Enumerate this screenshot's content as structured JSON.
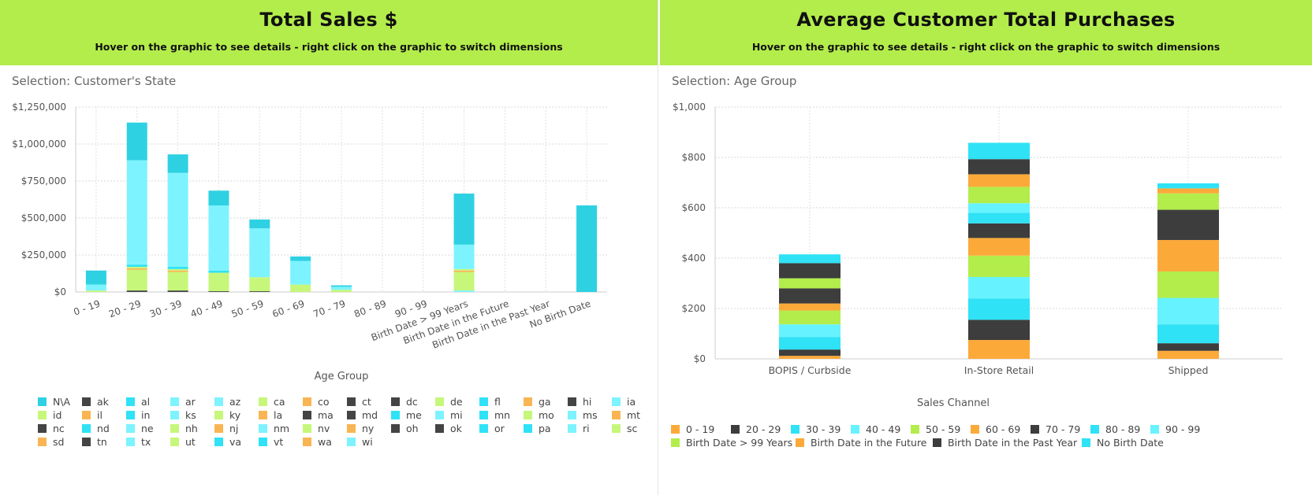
{
  "left_panel": {
    "title": "Total Sales $",
    "subtitle": "Hover on the graphic to see details - right click on the graphic to switch dimensions",
    "selection": "Selection: Customer's State"
  },
  "right_panel": {
    "title": "Average Customer Total Purchases",
    "subtitle": "Hover on the graphic to see details - right click on the graphic to switch dimensions",
    "selection": "Selection: Age Group"
  },
  "chart_data": [
    {
      "type": "bar",
      "stacked": true,
      "title": "Total Sales $",
      "xlabel": "Age Group",
      "ylabel": "",
      "ylim": [
        0,
        1250000
      ],
      "yticks": [
        0,
        250000,
        500000,
        750000,
        1000000,
        1250000
      ],
      "ytick_labels": [
        "$0",
        "$250,000",
        "$500,000",
        "$750,000",
        "$1,000,000",
        "$1,250,000"
      ],
      "grid": true,
      "legend_position": "bottom",
      "categories": [
        "0 - 19",
        "20 - 29",
        "30 - 39",
        "40 - 49",
        "50 - 59",
        "60 - 69",
        "70 - 79",
        "80 - 89",
        "90 - 99",
        "Birth Date > 99 Years",
        "Birth Date in the Future",
        "Birth Date in the Past Year",
        "No Birth Date"
      ],
      "legend": [
        {
          "name": "N\\A",
          "color": "#2ed1e2"
        },
        {
          "name": "ak",
          "color": "#444444"
        },
        {
          "name": "al",
          "color": "#2fe2f5"
        },
        {
          "name": "ar",
          "color": "#7df3ff"
        },
        {
          "name": "az",
          "color": "#7df3ff"
        },
        {
          "name": "ca",
          "color": "#c6f77a"
        },
        {
          "name": "co",
          "color": "#f9b553"
        },
        {
          "name": "ct",
          "color": "#444444"
        },
        {
          "name": "dc",
          "color": "#444444"
        },
        {
          "name": "de",
          "color": "#c6f77a"
        },
        {
          "name": "fl",
          "color": "#2fe2f5"
        },
        {
          "name": "ga",
          "color": "#f9b553"
        },
        {
          "name": "hi",
          "color": "#444444"
        },
        {
          "name": "ia",
          "color": "#7df3ff"
        },
        {
          "name": "id",
          "color": "#c6f77a"
        },
        {
          "name": "il",
          "color": "#f9b553"
        },
        {
          "name": "in",
          "color": "#2fe2f5"
        },
        {
          "name": "ks",
          "color": "#7df3ff"
        },
        {
          "name": "ky",
          "color": "#c6f77a"
        },
        {
          "name": "la",
          "color": "#f9b553"
        },
        {
          "name": "ma",
          "color": "#444444"
        },
        {
          "name": "md",
          "color": "#444444"
        },
        {
          "name": "me",
          "color": "#2fe2f5"
        },
        {
          "name": "mi",
          "color": "#7df3ff"
        },
        {
          "name": "mn",
          "color": "#2fe2f5"
        },
        {
          "name": "mo",
          "color": "#c6f77a"
        },
        {
          "name": "ms",
          "color": "#7df3ff"
        },
        {
          "name": "mt",
          "color": "#f9b553"
        },
        {
          "name": "nc",
          "color": "#444444"
        },
        {
          "name": "nd",
          "color": "#2fe2f5"
        },
        {
          "name": "ne",
          "color": "#7df3ff"
        },
        {
          "name": "nh",
          "color": "#c6f77a"
        },
        {
          "name": "nj",
          "color": "#f9b553"
        },
        {
          "name": "nm",
          "color": "#7df3ff"
        },
        {
          "name": "nv",
          "color": "#c6f77a"
        },
        {
          "name": "ny",
          "color": "#f9b553"
        },
        {
          "name": "oh",
          "color": "#444444"
        },
        {
          "name": "ok",
          "color": "#444444"
        },
        {
          "name": "or",
          "color": "#2fe2f5"
        },
        {
          "name": "pa",
          "color": "#2fe2f5"
        },
        {
          "name": "ri",
          "color": "#7df3ff"
        },
        {
          "name": "sc",
          "color": "#c6f77a"
        },
        {
          "name": "sd",
          "color": "#f9b553"
        },
        {
          "name": "tn",
          "color": "#444444"
        },
        {
          "name": "tx",
          "color": "#7df3ff"
        },
        {
          "name": "ut",
          "color": "#c6f77a"
        },
        {
          "name": "va",
          "color": "#2fe2f5"
        },
        {
          "name": "vt",
          "color": "#2fe2f5"
        },
        {
          "name": "wa",
          "color": "#f9b553"
        },
        {
          "name": "wi",
          "color": "#7df3ff"
        }
      ],
      "stacks": [
        [
          {
            "series": "ca",
            "value": 10000,
            "color": "#c6f77a"
          },
          {
            "series": "az",
            "value": 40000,
            "color": "#7df3ff"
          },
          {
            "series": "N\\A",
            "value": 95000,
            "color": "#2ed1e2"
          }
        ],
        [
          {
            "series": "dc",
            "value": 10000,
            "color": "#444444"
          },
          {
            "series": "ca",
            "value": 140000,
            "color": "#c6f77a"
          },
          {
            "series": "co",
            "value": 10000,
            "color": "#f9b553"
          },
          {
            "series": "ky",
            "value": 10000,
            "color": "#c6f77a"
          },
          {
            "series": "al",
            "value": 15000,
            "color": "#2fe2f5"
          },
          {
            "series": "nm",
            "value": 8000,
            "color": "#7df3ff"
          },
          {
            "series": "az",
            "value": 697000,
            "color": "#7df3ff"
          },
          {
            "series": "N\\A",
            "value": 255000,
            "color": "#2ed1e2"
          }
        ],
        [
          {
            "series": "dc",
            "value": 10000,
            "color": "#444444"
          },
          {
            "series": "ca",
            "value": 125000,
            "color": "#c6f77a"
          },
          {
            "series": "co",
            "value": 10000,
            "color": "#f9b553"
          },
          {
            "series": "ky",
            "value": 10000,
            "color": "#c6f77a"
          },
          {
            "series": "al",
            "value": 15000,
            "color": "#2fe2f5"
          },
          {
            "series": "az",
            "value": 635000,
            "color": "#7df3ff"
          },
          {
            "series": "N\\A",
            "value": 125000,
            "color": "#2ed1e2"
          }
        ],
        [
          {
            "series": "dc",
            "value": 5000,
            "color": "#444444"
          },
          {
            "series": "ca",
            "value": 115000,
            "color": "#c6f77a"
          },
          {
            "series": "ky",
            "value": 10000,
            "color": "#c6f77a"
          },
          {
            "series": "al",
            "value": 15000,
            "color": "#2fe2f5"
          },
          {
            "series": "az",
            "value": 440000,
            "color": "#7df3ff"
          },
          {
            "series": "N\\A",
            "value": 100000,
            "color": "#2ed1e2"
          }
        ],
        [
          {
            "series": "dc",
            "value": 5000,
            "color": "#444444"
          },
          {
            "series": "ca",
            "value": 90000,
            "color": "#c6f77a"
          },
          {
            "series": "ky",
            "value": 5000,
            "color": "#c6f77a"
          },
          {
            "series": "az",
            "value": 330000,
            "color": "#7df3ff"
          },
          {
            "series": "N\\A",
            "value": 60000,
            "color": "#2ed1e2"
          }
        ],
        [
          {
            "series": "ca",
            "value": 50000,
            "color": "#c6f77a"
          },
          {
            "series": "az",
            "value": 160000,
            "color": "#7df3ff"
          },
          {
            "series": "N\\A",
            "value": 30000,
            "color": "#2ed1e2"
          }
        ],
        [
          {
            "series": "ca",
            "value": 15000,
            "color": "#c6f77a"
          },
          {
            "series": "az",
            "value": 20000,
            "color": "#7df3ff"
          },
          {
            "series": "N\\A",
            "value": 10000,
            "color": "#2ed1e2"
          }
        ],
        [],
        [],
        [
          {
            "series": "ar",
            "value": 10000,
            "color": "#7df3ff"
          },
          {
            "series": "ca",
            "value": 125000,
            "color": "#c6f77a"
          },
          {
            "series": "co",
            "value": 10000,
            "color": "#f9b553"
          },
          {
            "series": "ky",
            "value": 10000,
            "color": "#c6f77a"
          },
          {
            "series": "az",
            "value": 165000,
            "color": "#7df3ff"
          },
          {
            "series": "N\\A",
            "value": 345000,
            "color": "#2ed1e2"
          }
        ],
        [],
        [],
        [
          {
            "series": "N\\A",
            "value": 585000,
            "color": "#2ed1e2"
          }
        ]
      ]
    },
    {
      "type": "bar",
      "stacked": true,
      "title": "Average Customer Total Purchases",
      "xlabel": "Sales Channel",
      "ylabel": "",
      "ylim": [
        0,
        1000
      ],
      "yticks": [
        0,
        200,
        400,
        600,
        800,
        1000
      ],
      "ytick_labels": [
        "$0",
        "$200",
        "$400",
        "$600",
        "$800",
        "$1,000"
      ],
      "grid": true,
      "legend_position": "bottom",
      "categories": [
        "BOPIS / Curbside",
        "In-Store Retail",
        "Shipped"
      ],
      "series": [
        {
          "name": "0 - 19",
          "color": "#fbaa3a",
          "values": [
            12,
            75,
            32
          ]
        },
        {
          "name": "20 - 29",
          "color": "#3d3d3d",
          "values": [
            25,
            80,
            30
          ]
        },
        {
          "name": "30 - 39",
          "color": "#2fe2f5",
          "values": [
            50,
            85,
            75
          ]
        },
        {
          "name": "40 - 49",
          "color": "#66f3ff",
          "values": [
            50,
            85,
            105
          ]
        },
        {
          "name": "50 - 59",
          "color": "#b3ed4b",
          "values": [
            55,
            85,
            105
          ]
        },
        {
          "name": "60 - 69",
          "color": "#fbaa3a",
          "values": [
            28,
            70,
            125
          ]
        },
        {
          "name": "70 - 79",
          "color": "#3d3d3d",
          "values": [
            60,
            58,
            120
          ]
        },
        {
          "name": "80 - 89",
          "color": "#2fe2f5",
          "values": [
            0,
            42,
            0
          ]
        },
        {
          "name": "90 - 99",
          "color": "#66f3ff",
          "values": [
            0,
            38,
            0
          ]
        },
        {
          "name": "Birth Date > 99 Years",
          "color": "#b3ed4b",
          "values": [
            40,
            65,
            65
          ]
        },
        {
          "name": "Birth Date in the Future",
          "color": "#fbaa3a",
          "values": [
            0,
            50,
            20
          ]
        },
        {
          "name": "Birth Date in the Past Year",
          "color": "#3d3d3d",
          "values": [
            60,
            60,
            0
          ]
        },
        {
          "name": "No Birth Date",
          "color": "#2fe2f5",
          "values": [
            35,
            65,
            20
          ]
        }
      ]
    }
  ]
}
